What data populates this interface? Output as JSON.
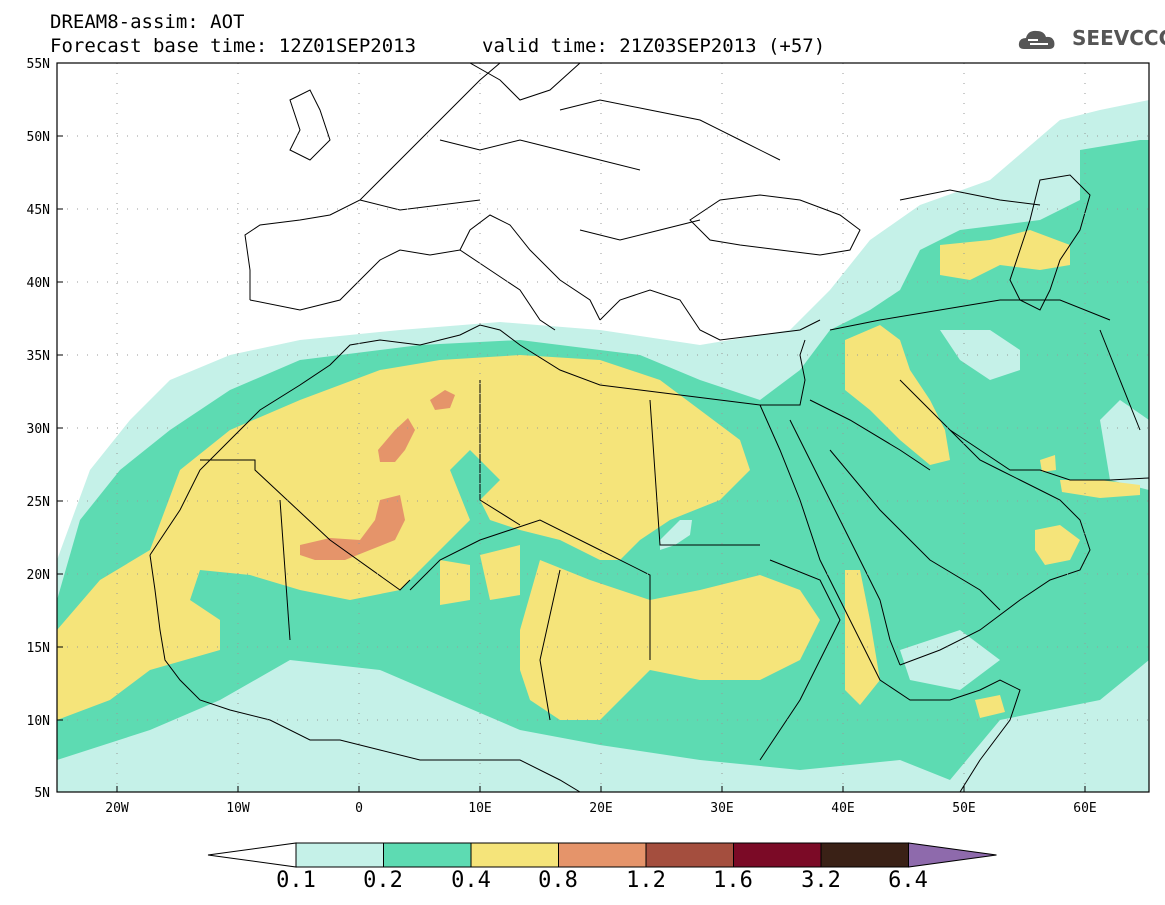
{
  "header": {
    "title": "DREAM8-assim: AOT",
    "base_time": "Forecast base time: 12Z01SEP2013",
    "valid_time": "valid time: 21Z03SEP2013 (+57)"
  },
  "logo": {
    "text": "SEEVCCC",
    "icon": "cloud-logo-icon"
  },
  "map": {
    "lat_labels": [
      "55N",
      "50N",
      "45N",
      "40N",
      "35N",
      "30N",
      "25N",
      "20N",
      "15N",
      "10N",
      "5N"
    ],
    "lon_labels": [
      "20W",
      "10W",
      "0",
      "10E",
      "20E",
      "30E",
      "40E",
      "50E",
      "60E"
    ],
    "extent": {
      "lon_min": -25,
      "lon_max": 65,
      "lat_min": 5,
      "lat_max": 55
    }
  },
  "colorbar": {
    "levels": [
      "0.1",
      "0.2",
      "0.4",
      "0.8",
      "1.2",
      "1.6",
      "3.2",
      "6.4"
    ],
    "colors": [
      "#ffffff",
      "#c5f1e8",
      "#5ddbb2",
      "#f5e47a",
      "#e5946a",
      "#a44e3e",
      "#7b0a26",
      "#3a2116",
      "#8e6aac"
    ]
  }
}
